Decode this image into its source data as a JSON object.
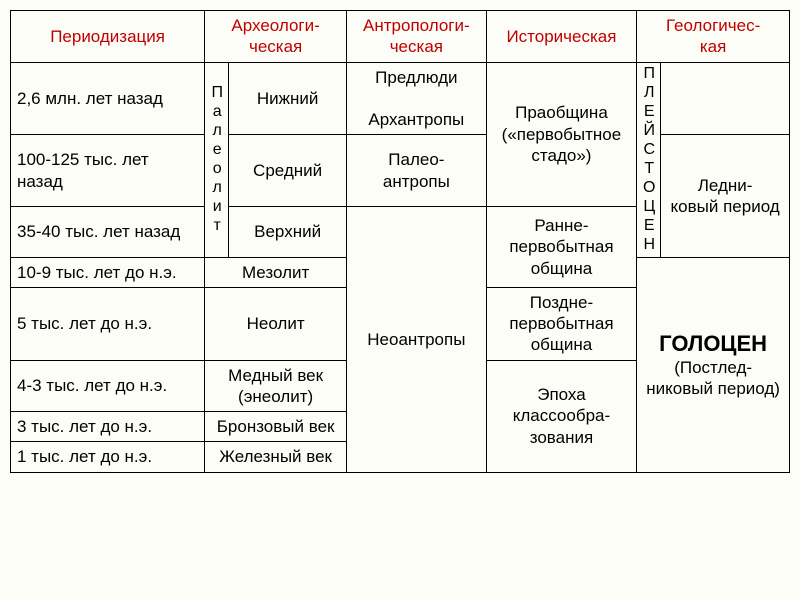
{
  "headers": {
    "periodization": "Периодизация",
    "archaeological": "Археологи-\nческая",
    "anthropological": "Антропологи-\nческая",
    "historical": "Историческая",
    "geological": "Геологичес-\nкая"
  },
  "periods": {
    "p1": "2,6 млн. лет назад",
    "p2": "100-125 тыс. лет назад",
    "p3": "35-40 тыс. лет назад",
    "p4": "10-9 тыс. лет до н.э.",
    "p5": "5 тыс. лет до н.э.",
    "p6": "4-3 тыс. лет до н.э.",
    "p7": "3 тыс. лет до н.э.",
    "p8": "1 тыс. лет до н.э."
  },
  "archaeo": {
    "paleolith": "Палеолит",
    "lower": "Нижний",
    "middle": "Средний",
    "upper": "Верхний",
    "mesolith": "Мезолит",
    "neolith": "Неолит",
    "copper": "Медный век (энеолит)",
    "bronze": "Бронзовый век",
    "iron": "Железный век"
  },
  "anthropo": {
    "pre_arch": "Предлюди\n\nАрхантропы",
    "paleo": "Палео-\nантропы",
    "neo": "Неоантропы"
  },
  "historical": {
    "praobshchina": "Праобщина («первобытное стадо»)",
    "early": "Ранне-\nпервобытная община",
    "late": "Поздне-\nпервобытная община",
    "class": "Эпоха классообра-\nзования"
  },
  "geo": {
    "pleistocene": "ПЛЕЙСТОЦЕН",
    "empty": "",
    "glacial": "Ледни-\nковый период",
    "holocene_main": "ГОЛОЦЕН",
    "holocene_sub": "(Постлед-\nниковый период)"
  },
  "style": {
    "header_color": "#c00000",
    "border_color": "#000000",
    "background": "#fdfdf8",
    "font_family": "Arial",
    "base_fontsize": 17,
    "holocene_fontsize": 22
  }
}
